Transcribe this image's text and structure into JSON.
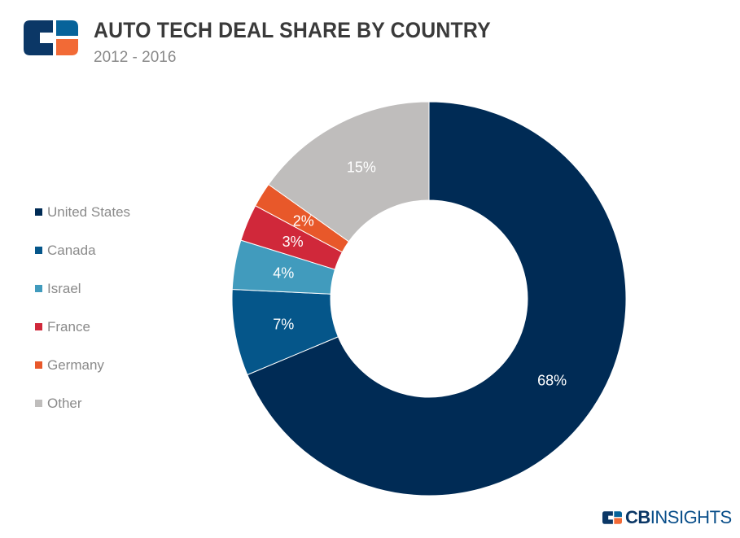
{
  "header": {
    "title": "AUTO TECH DEAL SHARE BY COUNTRY",
    "subtitle": "2012 - 2016"
  },
  "brand": {
    "name_bold": "CB",
    "name_light": "INSIGHTS",
    "colors": {
      "navy": "#0b3766",
      "blue": "#07639a",
      "orange": "#f26a36"
    }
  },
  "chart_data": {
    "type": "pie",
    "donut": true,
    "title": "AUTO TECH DEAL SHARE BY COUNTRY",
    "subtitle": "2012 - 2016",
    "legend_position": "left",
    "start_angle": "12 o'clock, clockwise",
    "series": [
      {
        "name": "United States",
        "value": 68,
        "label": "68%",
        "color": "#002b55"
      },
      {
        "name": "Canada",
        "value": 7,
        "label": "7%",
        "color": "#05568a"
      },
      {
        "name": "Israel",
        "value": 4,
        "label": "4%",
        "color": "#419bbd"
      },
      {
        "name": "France",
        "value": 3,
        "label": "3%",
        "color": "#d0283a"
      },
      {
        "name": "Germany",
        "value": 2,
        "label": "2%",
        "color": "#e8582a"
      },
      {
        "name": "Other",
        "value": 15,
        "label": "15%",
        "color": "#bfbdbc"
      }
    ]
  }
}
